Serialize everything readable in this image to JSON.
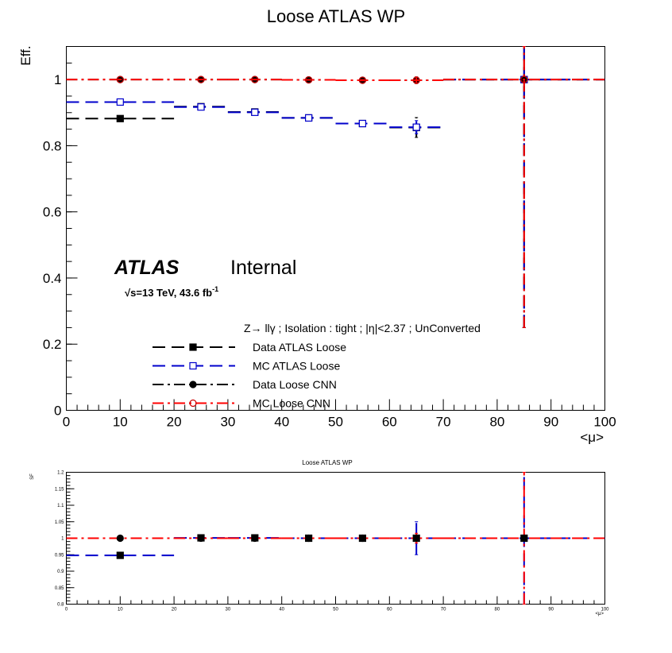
{
  "colors": {
    "data_atlas": "#000000",
    "mc_atlas": "#0000cc",
    "data_cnn": "#000000",
    "mc_cnn": "#ff0000",
    "mc_cnn_marker": "#cc0000"
  },
  "atlas_label": {
    "brand": "ATLAS",
    "status": "Internal",
    "sqrt": "√",
    "energy": "s=13 TeV, 43.6 fb",
    "lumi_sup": "-1"
  },
  "legend": {
    "header": "Z→ llγ ; Isolation : tight ; |η|<2.37 ; UnConverted",
    "entries": [
      "Data ATLAS Loose",
      "MC ATLAS Loose",
      "Data Loose CNN",
      "MC Loose CNN"
    ]
  },
  "chart_data": [
    {
      "type": "scatter",
      "title": "Loose ATLAS WP",
      "xlabel": "<μ>",
      "ylabel": "Eff.",
      "xlim": [
        0,
        100
      ],
      "ylim": [
        0,
        1.1
      ],
      "xticks": [
        "0",
        "10",
        "20",
        "30",
        "40",
        "50",
        "60",
        "70",
        "80",
        "90",
        "100"
      ],
      "yticks": [
        "0",
        "0.2",
        "0.4",
        "0.6",
        "0.8",
        "1"
      ],
      "grid": false,
      "legend_position": "bottom-center",
      "series": [
        {
          "name": "Data ATLAS Loose",
          "marker": "filled-square",
          "points": [
            {
              "xlo": 0,
              "xhi": 20,
              "y": 0.882,
              "err": 0.003
            },
            {
              "xlo": 20,
              "xhi": 30,
              "y": 0.918,
              "err": 0.003
            },
            {
              "xlo": 30,
              "xhi": 40,
              "y": 0.902,
              "err": 0.003
            },
            {
              "xlo": 40,
              "xhi": 50,
              "y": 0.884,
              "err": 0.003
            },
            {
              "xlo": 50,
              "xhi": 60,
              "y": 0.867,
              "err": 0.004
            },
            {
              "xlo": 60,
              "xhi": 70,
              "y": 0.855,
              "err": 0.03
            },
            {
              "xlo": 70,
              "xhi": 100,
              "y": 1.0,
              "err": 0.75
            }
          ]
        },
        {
          "name": "MC ATLAS Loose",
          "marker": "open-square",
          "points": [
            {
              "xlo": 0,
              "xhi": 20,
              "y": 0.932,
              "err": 0.003
            },
            {
              "xlo": 20,
              "xhi": 30,
              "y": 0.917,
              "err": 0.003
            },
            {
              "xlo": 30,
              "xhi": 40,
              "y": 0.901,
              "err": 0.003
            },
            {
              "xlo": 40,
              "xhi": 50,
              "y": 0.884,
              "err": 0.003
            },
            {
              "xlo": 50,
              "xhi": 60,
              "y": 0.867,
              "err": 0.004
            },
            {
              "xlo": 60,
              "xhi": 70,
              "y": 0.856,
              "err": 0.02
            },
            {
              "xlo": 70,
              "xhi": 100,
              "y": 1.0,
              "err": 0.75
            }
          ]
        },
        {
          "name": "Data Loose CNN",
          "marker": "filled-circle",
          "points": [
            {
              "xlo": 0,
              "xhi": 20,
              "y": 1.0,
              "err": 0.001
            },
            {
              "xlo": 20,
              "xhi": 30,
              "y": 1.0,
              "err": 0.001
            },
            {
              "xlo": 30,
              "xhi": 40,
              "y": 1.0,
              "err": 0.001
            },
            {
              "xlo": 40,
              "xhi": 50,
              "y": 0.999,
              "err": 0.001
            },
            {
              "xlo": 50,
              "xhi": 60,
              "y": 0.998,
              "err": 0.002
            },
            {
              "xlo": 60,
              "xhi": 70,
              "y": 0.998,
              "err": 0.01
            },
            {
              "xlo": 70,
              "xhi": 100,
              "y": 1.0,
              "err": 0.75
            }
          ]
        },
        {
          "name": "MC Loose CNN",
          "marker": "open-circle",
          "points": [
            {
              "xlo": 0,
              "xhi": 20,
              "y": 1.0,
              "err": 0.001
            },
            {
              "xlo": 20,
              "xhi": 30,
              "y": 1.0,
              "err": 0.001
            },
            {
              "xlo": 30,
              "xhi": 40,
              "y": 1.0,
              "err": 0.001
            },
            {
              "xlo": 40,
              "xhi": 50,
              "y": 0.999,
              "err": 0.001
            },
            {
              "xlo": 50,
              "xhi": 60,
              "y": 0.998,
              "err": 0.002
            },
            {
              "xlo": 60,
              "xhi": 70,
              "y": 0.998,
              "err": 0.01
            },
            {
              "xlo": 70,
              "xhi": 100,
              "y": 1.0,
              "err": 0.75
            }
          ]
        }
      ]
    },
    {
      "type": "scatter",
      "title": "Loose ATLAS WP",
      "xlabel": "<μ>",
      "ylabel": "SF",
      "xlim": [
        0,
        100
      ],
      "ylim": [
        0.8,
        1.2
      ],
      "xticks": [
        "0",
        "10",
        "20",
        "30",
        "40",
        "50",
        "60",
        "70",
        "80",
        "90",
        "100"
      ],
      "yticks": [
        "0.8",
        "0.85",
        "0.9",
        "0.95",
        "1",
        "1.05",
        "1.1",
        "1.15",
        "1.2"
      ],
      "grid": false,
      "series": [
        {
          "name": "Data ATLAS Loose",
          "marker": "filled-square",
          "style": "mc_atlas",
          "points": [
            {
              "xlo": 0,
              "xhi": 20,
              "y": 0.948,
              "err": 0.002
            },
            {
              "xlo": 20,
              "xhi": 30,
              "y": 1.001,
              "err": 0.002
            },
            {
              "xlo": 30,
              "xhi": 40,
              "y": 1.001,
              "err": 0.002
            },
            {
              "xlo": 40,
              "xhi": 50,
              "y": 1.0,
              "err": 0.002
            },
            {
              "xlo": 50,
              "xhi": 60,
              "y": 1.0,
              "err": 0.003
            },
            {
              "xlo": 60,
              "xhi": 70,
              "y": 1.0,
              "err": 0.05
            },
            {
              "xlo": 70,
              "xhi": 100,
              "y": 1.0,
              "err": 0.3
            }
          ]
        },
        {
          "name": "Data Loose CNN",
          "marker": "filled-circle",
          "style": "mc_cnn",
          "points": [
            {
              "xlo": 0,
              "xhi": 20,
              "y": 1.0,
              "err": 0.001
            },
            {
              "xlo": 20,
              "xhi": 30,
              "y": 1.0,
              "err": 0.001
            },
            {
              "xlo": 30,
              "xhi": 40,
              "y": 1.0,
              "err": 0.001
            },
            {
              "xlo": 40,
              "xhi": 50,
              "y": 1.0,
              "err": 0.001
            },
            {
              "xlo": 50,
              "xhi": 60,
              "y": 1.0,
              "err": 0.002
            },
            {
              "xlo": 60,
              "xhi": 70,
              "y": 1.0,
              "err": 0.015
            },
            {
              "xlo": 70,
              "xhi": 100,
              "y": 1.0,
              "err": 0.3
            }
          ]
        }
      ]
    }
  ]
}
